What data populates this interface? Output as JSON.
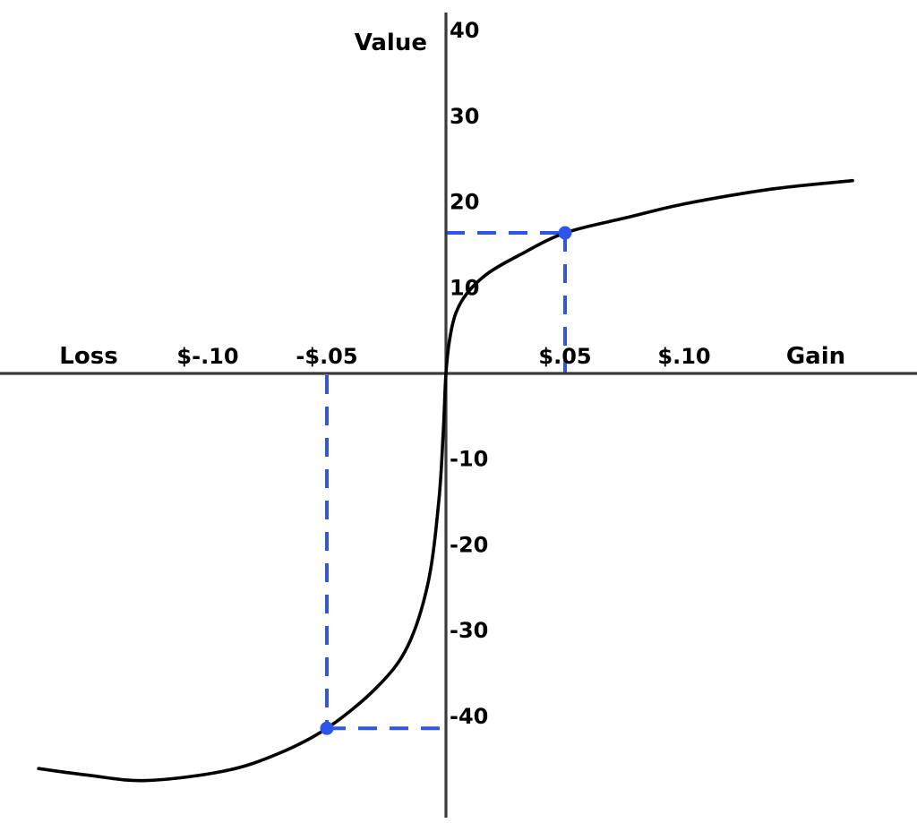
{
  "page": {
    "background": "#ffffff"
  },
  "colors": {
    "curve": "#000000",
    "axis": "#3a3a3a",
    "guide_blue": "#2e55ea",
    "text": "#000000"
  },
  "chart_data": {
    "type": "line",
    "title": "",
    "ylabel": "Value",
    "xlabel_negative": "Loss",
    "xlabel_positive": "Gain",
    "grid": false,
    "legend": false,
    "xlim": [
      -0.188,
      0.198
    ],
    "ylim": [
      -48.5,
      42.5
    ],
    "x_ticks": [
      {
        "value": -0.1,
        "label": "$-.10"
      },
      {
        "value": -0.05,
        "label": "-$.05"
      },
      {
        "value": 0.05,
        "label": "$.05"
      },
      {
        "value": 0.1,
        "label": "$.10"
      }
    ],
    "y_ticks": [
      {
        "value": 40,
        "label": "40"
      },
      {
        "value": 30,
        "label": "30"
      },
      {
        "value": 20,
        "label": "20"
      },
      {
        "value": 10,
        "label": "10"
      },
      {
        "value": -10,
        "label": "-10"
      },
      {
        "value": -20,
        "label": "-20"
      },
      {
        "value": -30,
        "label": "-30"
      },
      {
        "value": -40,
        "label": "-40"
      }
    ],
    "series": [
      {
        "name": "value-function-curve",
        "points": [
          [
            -0.171,
            -46.1
          ],
          [
            -0.1496,
            -46.9
          ],
          [
            -0.1259,
            -47.5
          ],
          [
            -0.0932,
            -46.4
          ],
          [
            -0.0707,
            -44.4
          ],
          [
            -0.05,
            -41.4
          ],
          [
            -0.0293,
            -36.7
          ],
          [
            -0.0162,
            -31.9
          ],
          [
            -0.0075,
            -24.4
          ],
          [
            -0.003,
            -14.9
          ],
          [
            -0.0011,
            -6.6
          ],
          [
            0.0,
            0.0
          ],
          [
            0.0015,
            3.9
          ],
          [
            0.0041,
            7.0
          ],
          [
            0.009,
            9.4
          ],
          [
            0.0177,
            11.7
          ],
          [
            0.0308,
            13.8
          ],
          [
            0.05,
            16.4
          ],
          [
            0.0762,
            18.2
          ],
          [
            0.1004,
            19.8
          ],
          [
            0.1365,
            21.5
          ],
          [
            0.1707,
            22.5
          ]
        ]
      }
    ],
    "annotations": [
      {
        "name": "gain-reference-point",
        "x": 0.05,
        "y": 16.4
      },
      {
        "name": "loss-reference-point",
        "x": -0.05,
        "y": -41.4
      }
    ]
  }
}
